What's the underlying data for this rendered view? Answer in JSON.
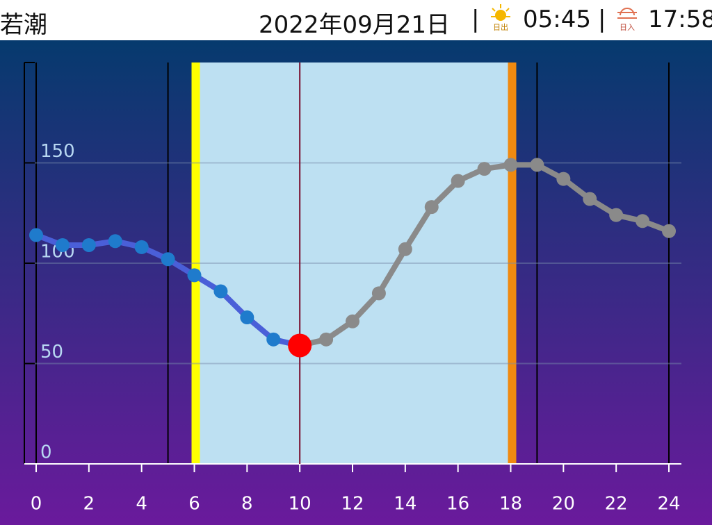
{
  "header": {
    "tide_name": "若潮",
    "date": "2022年09月21日",
    "sunrise_label": "日出",
    "sunrise": "05:45",
    "sunset_label": "日入",
    "sunset": "17:58"
  },
  "chart_data": {
    "type": "line",
    "x": [
      0,
      1,
      2,
      3,
      4,
      5,
      6,
      7,
      8,
      9,
      10,
      11,
      12,
      13,
      14,
      15,
      16,
      17,
      18,
      19,
      20,
      21,
      22,
      23,
      24
    ],
    "series": [
      {
        "values": [
          114,
          109,
          109,
          111,
          108,
          102,
          94,
          86,
          73,
          62,
          59,
          62,
          71,
          85,
          107,
          128,
          141,
          147,
          149,
          149,
          142,
          132,
          124,
          121,
          116
        ],
        "color": "#1f7bcc",
        "line_color": "#4a5fd8",
        "future_color": "#8a8a8a"
      }
    ],
    "current_x": 10,
    "current_color": "#ff0000",
    "xlim": [
      0,
      24
    ],
    "xticks": [
      0,
      2,
      4,
      6,
      8,
      10,
      12,
      14,
      16,
      18,
      20,
      22,
      24
    ],
    "ylim": [
      0,
      200
    ],
    "yticks": [
      0,
      50,
      100,
      150
    ],
    "daylight": [
      6,
      18
    ],
    "markers": [
      0,
      5,
      19,
      24
    ],
    "grid": true
  }
}
